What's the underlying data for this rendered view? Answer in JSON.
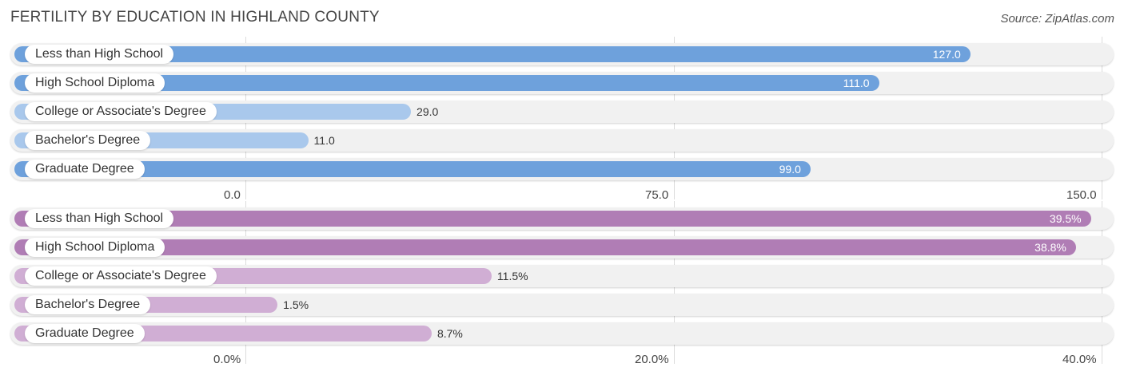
{
  "title": "FERTILITY BY EDUCATION IN HIGHLAND COUNTY",
  "source": "Source: ZipAtlas.com",
  "chart_data": [
    {
      "type": "bar",
      "orientation": "horizontal",
      "categories": [
        "Less than High School",
        "High School Diploma",
        "College or Associate's Degree",
        "Bachelor's Degree",
        "Graduate Degree"
      ],
      "values": [
        127.0,
        111.0,
        29.0,
        11.0,
        99.0
      ],
      "value_labels": [
        "127.0",
        "111.0",
        "29.0",
        "11.0",
        "99.0"
      ],
      "xlim": [
        0,
        150
      ],
      "ticks": [
        "0.0",
        "75.0",
        "150.0"
      ],
      "tick_values": [
        0,
        75,
        150
      ],
      "colors": {
        "strong": "#6ea1dc",
        "light": "#a9c8ec"
      },
      "grid": true
    },
    {
      "type": "bar",
      "orientation": "horizontal",
      "categories": [
        "Less than High School",
        "High School Diploma",
        "College or Associate's Degree",
        "Bachelor's Degree",
        "Graduate Degree"
      ],
      "values": [
        39.5,
        38.8,
        11.5,
        1.5,
        8.7
      ],
      "value_labels": [
        "39.5%",
        "38.8%",
        "11.5%",
        "1.5%",
        "8.7%"
      ],
      "xlim": [
        0,
        40
      ],
      "ticks": [
        "0.0%",
        "20.0%",
        "40.0%"
      ],
      "tick_values": [
        0,
        20,
        40
      ],
      "colors": {
        "strong": "#b07db5",
        "light": "#d0aed4"
      },
      "grid": true
    }
  ]
}
